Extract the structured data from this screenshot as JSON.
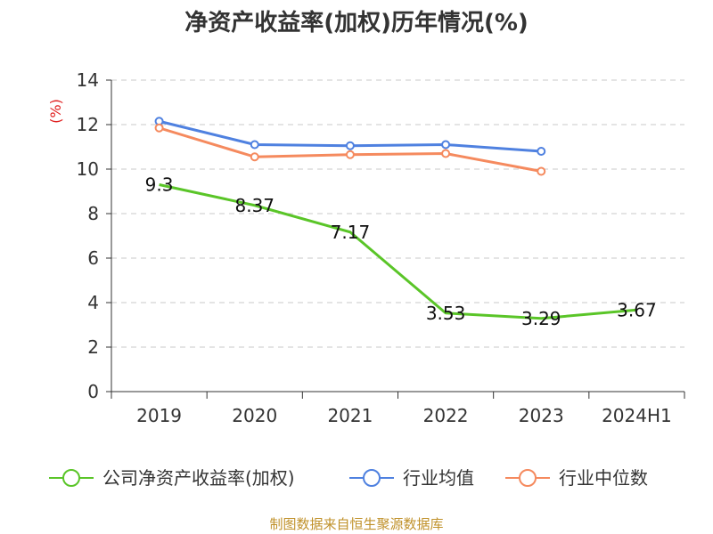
{
  "chart_data": {
    "type": "line",
    "title": "净资产收益率(加权)历年情况(%)",
    "ylabel": "(%)",
    "ylim": [
      0,
      14
    ],
    "yticks": [
      0,
      2,
      4,
      6,
      8,
      10,
      12,
      14
    ],
    "categories": [
      "2019",
      "2020",
      "2021",
      "2022",
      "2023",
      "2024H1"
    ],
    "grid": true,
    "legend_position": "bottom",
    "series": [
      {
        "name": "公司净资产收益率(加权)",
        "color": "#5ac528",
        "values": [
          9.3,
          8.37,
          7.17,
          3.53,
          3.29,
          3.67
        ],
        "labels": [
          "9.3",
          "8.37",
          "7.17",
          "3.53",
          "3.29",
          "3.67"
        ],
        "markers": false
      },
      {
        "name": "行业均值",
        "color": "#4f81e0",
        "values": [
          12.15,
          11.1,
          11.05,
          11.1,
          10.8,
          null
        ],
        "markers": true
      },
      {
        "name": "行业中位数",
        "color": "#f58a5e",
        "values": [
          11.85,
          10.55,
          10.65,
          10.7,
          9.9,
          null
        ],
        "markers": true
      }
    ]
  },
  "source": "制图数据来自恒生聚源数据库"
}
